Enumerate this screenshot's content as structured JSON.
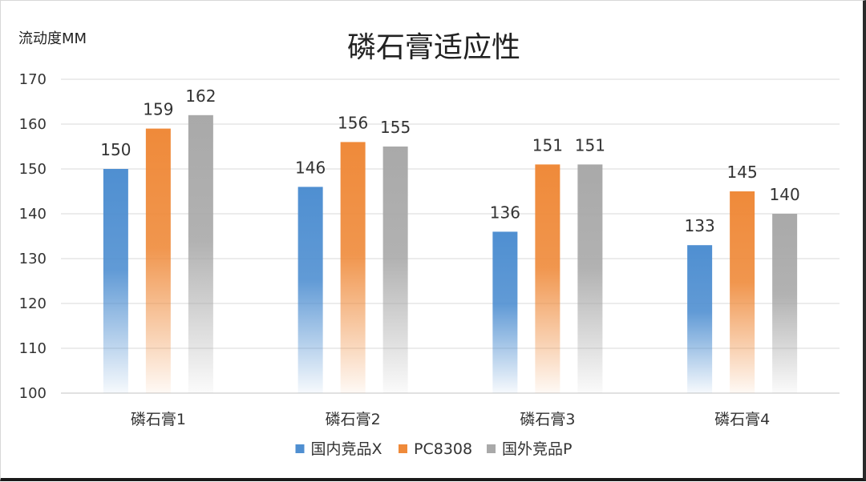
{
  "chart_data": {
    "type": "bar",
    "title": "磷石膏适应性",
    "ylabel": "流动度MM",
    "xlabel": "",
    "categories": [
      "磷石膏1",
      "磷石膏2",
      "磷石膏3",
      "磷石膏4"
    ],
    "ylim": [
      100,
      170
    ],
    "yticks": [
      100,
      110,
      120,
      130,
      140,
      150,
      160,
      170
    ],
    "grid": true,
    "legend_position": "bottom",
    "data_labels": true,
    "series": [
      {
        "name": "国内竞品X",
        "values": [
          150,
          146,
          136,
          133
        ],
        "color": "#4f8fd1",
        "icon": "legend-swatch-blue"
      },
      {
        "name": "PC8308",
        "values": [
          159,
          156,
          151,
          145
        ],
        "color": "#ef8a3a",
        "icon": "legend-swatch-orange"
      },
      {
        "name": "国外竞品P",
        "values": [
          162,
          155,
          151,
          140
        ],
        "color": "#a9a9a9",
        "icon": "legend-swatch-gray"
      }
    ]
  }
}
